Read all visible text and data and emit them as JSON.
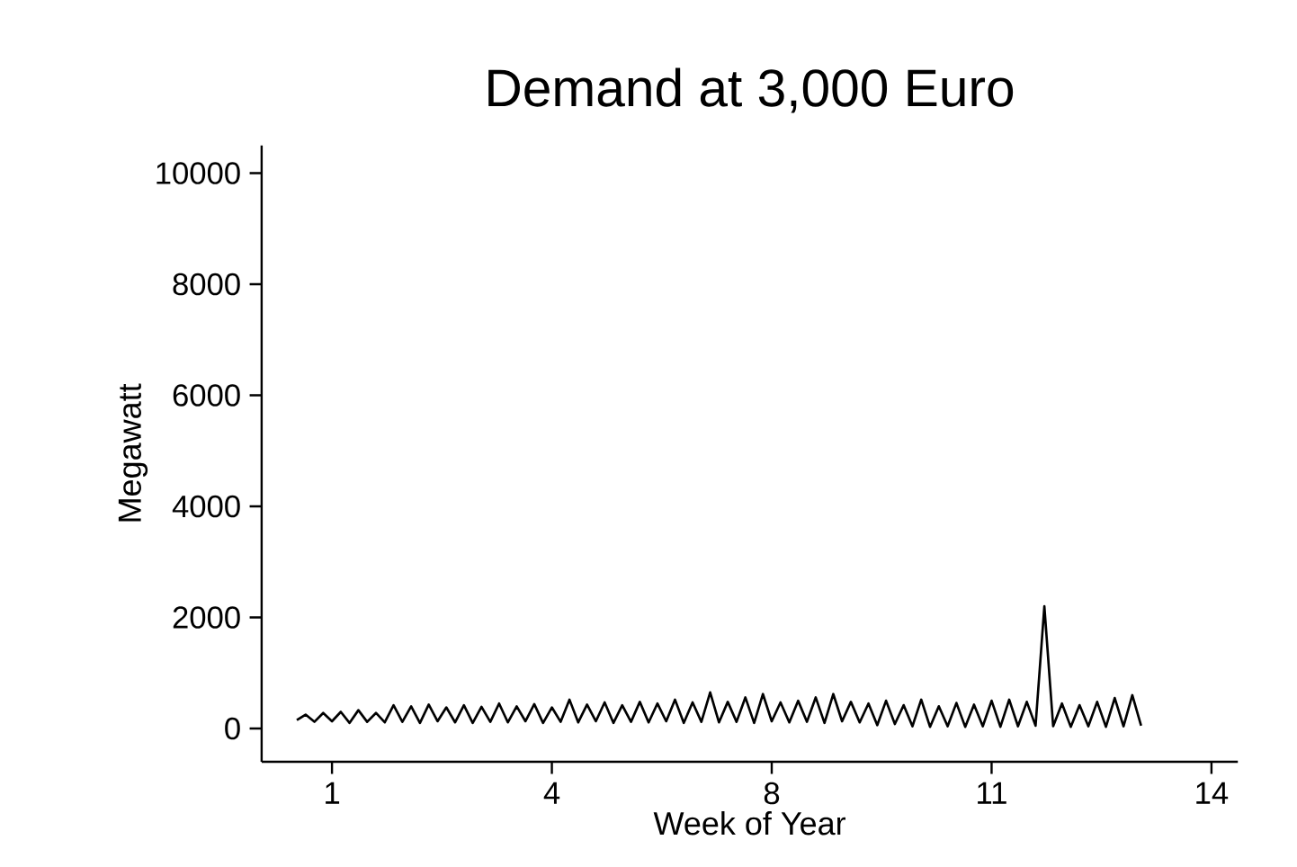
{
  "chart_data": {
    "type": "line",
    "title": "Demand at 3,000 Euro",
    "xlabel": "Week of Year",
    "ylabel": "Megawatt",
    "color": "#000000",
    "ylim": [
      -600,
      10500
    ],
    "yticks": [
      0,
      2000,
      4000,
      6000,
      8000,
      10000
    ],
    "categories": [
      null,
      null,
      null,
      null,
      "1",
      null,
      null,
      null,
      null,
      null,
      null,
      null,
      null,
      null,
      null,
      null,
      null,
      null,
      null,
      null,
      null,
      null,
      null,
      null,
      null,
      null,
      null,
      null,
      null,
      "4",
      null,
      null,
      null,
      null,
      null,
      null,
      null,
      null,
      null,
      null,
      null,
      null,
      null,
      null,
      null,
      null,
      null,
      null,
      null,
      null,
      null,
      null,
      null,
      null,
      "8",
      null,
      null,
      null,
      null,
      null,
      null,
      null,
      null,
      null,
      null,
      null,
      null,
      null,
      null,
      null,
      null,
      null,
      null,
      null,
      null,
      null,
      null,
      null,
      null,
      "11",
      null,
      null,
      null,
      null,
      null,
      null,
      null,
      null,
      null,
      null,
      null,
      null,
      null,
      null,
      null,
      null,
      null,
      null,
      null,
      null,
      null,
      null,
      null,
      null,
      "14"
    ],
    "values": [
      150,
      250,
      120,
      280,
      130,
      300,
      100,
      330,
      120,
      280,
      110,
      420,
      120,
      400,
      100,
      430,
      130,
      380,
      110,
      420,
      100,
      390,
      120,
      450,
      110,
      400,
      130,
      440,
      100,
      380,
      120,
      520,
      110,
      430,
      130,
      470,
      100,
      420,
      120,
      480,
      110,
      450,
      130,
      520,
      100,
      470,
      120,
      650,
      110,
      480,
      120,
      560,
      100,
      620,
      130,
      470,
      110,
      500,
      120,
      560,
      100,
      620,
      130,
      480,
      110,
      450,
      60,
      500,
      80,
      420,
      40,
      520,
      30,
      400,
      40,
      460,
      30,
      430,
      40,
      500,
      30,
      520,
      40,
      480,
      50,
      2200,
      40,
      450,
      30,
      420,
      40,
      480,
      30,
      550,
      40,
      600,
      50,
      null,
      null,
      null,
      null,
      null,
      null,
      null,
      null
    ]
  }
}
